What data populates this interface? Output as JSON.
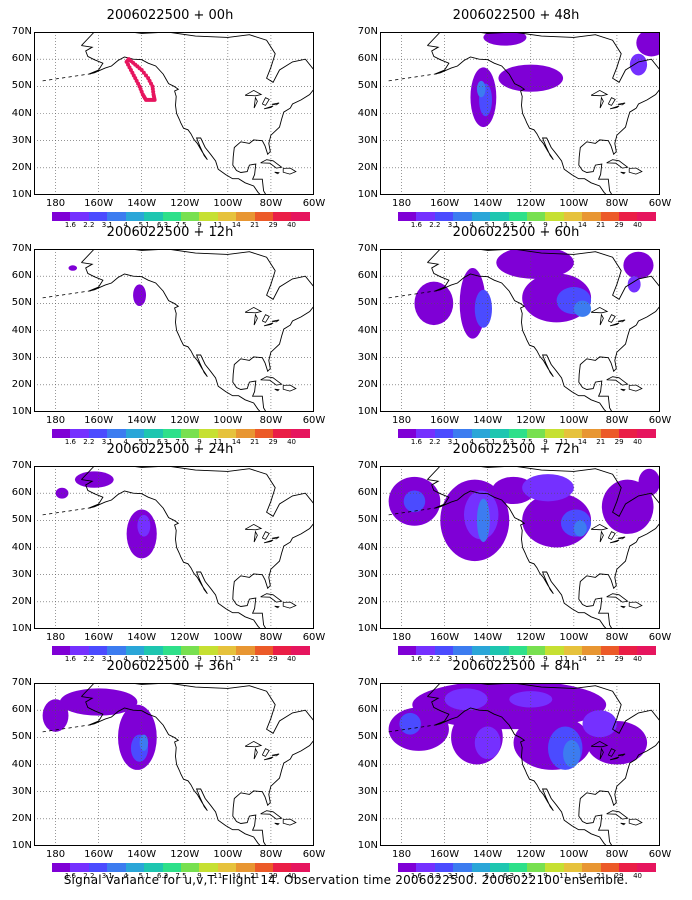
{
  "caption": "Signal Variance for u,v,T. Flight 14. Observation time 2006022500. 2006022100 ensemble.",
  "lat_labels": [
    "70N",
    "60N",
    "50N",
    "40N",
    "30N",
    "20N",
    "10N"
  ],
  "lon_labels": [
    "180",
    "160W",
    "140W",
    "120W",
    "100W",
    "80W",
    "60W"
  ],
  "colorbar": {
    "levels": [
      "1.6",
      "2.2",
      "3.1",
      "4",
      "5.1",
      "6.3",
      "7.5",
      "9",
      "11",
      "14",
      "21",
      "29",
      "40"
    ],
    "colors": [
      "#7f00d6",
      "#7530ff",
      "#4b4bff",
      "#3c7cf0",
      "#2aa6d8",
      "#1ec6b0",
      "#2ee08a",
      "#78e050",
      "#c6e032",
      "#e6c23c",
      "#e89632",
      "#ec5a28",
      "#ea1e46",
      "#e6155e"
    ]
  },
  "panels": [
    {
      "title": "2006022500 + 00h",
      "col": 0,
      "row": 0
    },
    {
      "title": "2006022500 + 48h",
      "col": 1,
      "row": 0
    },
    {
      "title": "2006022500 + 12h",
      "col": 0,
      "row": 1
    },
    {
      "title": "2006022500 + 60h",
      "col": 1,
      "row": 1
    },
    {
      "title": "2006022500 + 24h",
      "col": 0,
      "row": 2
    },
    {
      "title": "2006022500 + 72h",
      "col": 1,
      "row": 2
    },
    {
      "title": "2006022500 + 36h",
      "col": 0,
      "row": 3
    },
    {
      "title": "2006022500 + 84h",
      "col": 1,
      "row": 3
    }
  ]
}
